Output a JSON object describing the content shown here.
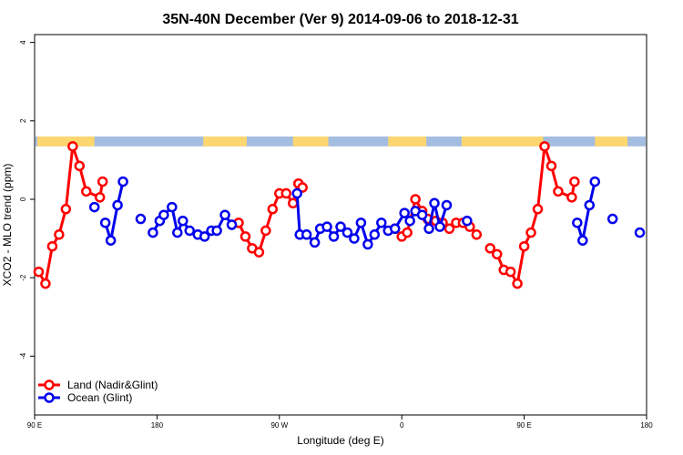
{
  "chart_data": {
    "type": "line",
    "title": "35N-40N December (Ver 9)   2014-09-06 to 2018-12-31",
    "xlabel": "Longitude (deg E)",
    "ylabel": "XCO2 - MLO trend (ppm)",
    "xlim": [
      90,
      540
    ],
    "ylim": [
      -5.5,
      4.2
    ],
    "x_ticks": [
      {
        "value": 90,
        "label": "90 E"
      },
      {
        "value": 180,
        "label": "180"
      },
      {
        "value": 270,
        "label": "90 W"
      },
      {
        "value": 360,
        "label": "0"
      },
      {
        "value": 450,
        "label": "90 E"
      },
      {
        "value": 540,
        "label": "180"
      }
    ],
    "y_ticks": [
      {
        "value": -4,
        "label": "-4"
      },
      {
        "value": -2,
        "label": "-2"
      },
      {
        "value": 0,
        "label": "0"
      },
      {
        "value": 2,
        "label": "2"
      },
      {
        "value": 4,
        "label": "4"
      }
    ],
    "grid": false,
    "legend_position": "bottom-left",
    "colors": {
      "land": "#ff0000",
      "ocean": "#0000ee",
      "land_mask_land": "#fdd66f",
      "land_mask_ocean": "#a3bde0"
    },
    "land_ocean_strip": {
      "y_range": [
        1.35,
        1.6
      ],
      "land_intervals": [
        [
          92,
          134
        ],
        [
          214,
          246
        ],
        [
          280,
          306
        ],
        [
          350,
          378
        ],
        [
          404,
          464
        ],
        [
          502,
          526
        ]
      ]
    },
    "series": [
      {
        "name": "Land (Nadir&Glint)",
        "key": "land",
        "segments": [
          [
            [
              93,
              -1.85
            ],
            [
              98,
              -2.15
            ],
            [
              103,
              -1.2
            ],
            [
              108,
              -0.9
            ],
            [
              113,
              -0.25
            ],
            [
              118,
              1.35
            ],
            [
              123,
              0.85
            ],
            [
              128,
              0.2
            ],
            [
              138,
              0.05
            ],
            [
              140,
              0.45
            ]
          ],
          [
            [
              240,
              -0.6
            ],
            [
              245,
              -0.95
            ],
            [
              250,
              -1.25
            ],
            [
              255,
              -1.35
            ],
            [
              260,
              -0.8
            ],
            [
              265,
              -0.25
            ],
            [
              270,
              0.15
            ],
            [
              275,
              0.15
            ],
            [
              280,
              -0.1
            ],
            [
              284,
              0.4
            ],
            [
              287,
              0.3
            ]
          ],
          [
            [
              355,
              -0.75
            ],
            [
              360,
              -0.95
            ],
            [
              364,
              -0.85
            ],
            [
              370,
              0.0
            ],
            [
              375,
              -0.3
            ],
            [
              379,
              -0.5
            ],
            [
              385,
              -0.55
            ],
            [
              390,
              -0.6
            ],
            [
              395,
              -0.75
            ],
            [
              400,
              -0.6
            ],
            [
              405,
              -0.6
            ],
            [
              410,
              -0.7
            ],
            [
              415,
              -0.9
            ]
          ],
          [
            [
              425,
              -1.25
            ],
            [
              430,
              -1.4
            ],
            [
              435,
              -1.8
            ],
            [
              440,
              -1.85
            ],
            [
              445,
              -2.15
            ],
            [
              450,
              -1.2
            ],
            [
              455,
              -0.85
            ],
            [
              460,
              -0.25
            ],
            [
              465,
              1.35
            ],
            [
              470,
              0.85
            ],
            [
              475,
              0.2
            ],
            [
              485,
              0.05
            ],
            [
              487,
              0.45
            ]
          ]
        ]
      },
      {
        "name": "Ocean (Glint)",
        "key": "ocean",
        "segments": [
          [
            [
              134,
              -0.2
            ]
          ],
          [
            [
              142,
              -0.6
            ],
            [
              146,
              -1.05
            ],
            [
              151,
              -0.15
            ],
            [
              155,
              0.45
            ]
          ],
          [
            [
              168,
              -0.5
            ]
          ],
          [
            [
              177,
              -0.85
            ],
            [
              182,
              -0.55
            ],
            [
              185,
              -0.4
            ],
            [
              191,
              -0.2
            ],
            [
              195,
              -0.85
            ],
            [
              199,
              -0.55
            ],
            [
              204,
              -0.8
            ],
            [
              210,
              -0.9
            ],
            [
              215,
              -0.95
            ],
            [
              220,
              -0.8
            ],
            [
              224,
              -0.8
            ],
            [
              230,
              -0.4
            ],
            [
              235,
              -0.65
            ]
          ],
          [
            [
              283,
              0.15
            ],
            [
              285,
              -0.9
            ],
            [
              290,
              -0.9
            ],
            [
              296,
              -1.1
            ],
            [
              300,
              -0.75
            ],
            [
              305,
              -0.7
            ],
            [
              310,
              -0.95
            ],
            [
              315,
              -0.7
            ],
            [
              320,
              -0.85
            ],
            [
              325,
              -1.0
            ],
            [
              330,
              -0.6
            ],
            [
              335,
              -1.15
            ],
            [
              340,
              -0.9
            ],
            [
              345,
              -0.6
            ],
            [
              350,
              -0.8
            ],
            [
              355,
              -0.75
            ],
            [
              362,
              -0.35
            ],
            [
              366,
              -0.55
            ],
            [
              370,
              -0.3
            ],
            [
              375,
              -0.4
            ],
            [
              380,
              -0.75
            ],
            [
              384,
              -0.1
            ],
            [
              388,
              -0.7
            ],
            [
              393,
              -0.15
            ]
          ],
          [
            [
              408,
              -0.55
            ]
          ],
          [
            [
              489,
              -0.6
            ],
            [
              493,
              -1.05
            ],
            [
              498,
              -0.15
            ],
            [
              502,
              0.45
            ]
          ],
          [
            [
              515,
              -0.5
            ]
          ],
          [
            [
              535,
              -0.85
            ]
          ]
        ]
      }
    ]
  }
}
